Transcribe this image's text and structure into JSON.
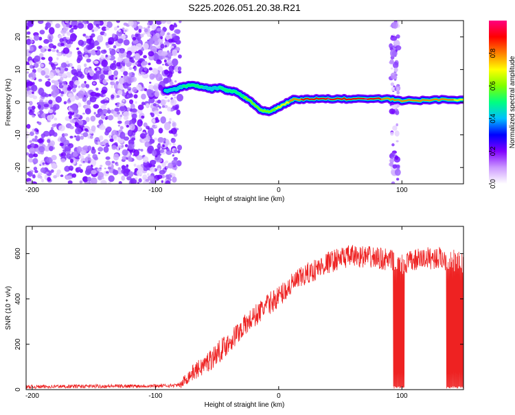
{
  "title": "S225.2026.051.20.38.R21",
  "chart_data": [
    {
      "type": "heatmap",
      "name": "spectrogram",
      "xlabel": "Height of straight line (km)",
      "ylabel": "Frequency (Hz)",
      "xlim": [
        -205,
        150
      ],
      "ylim": [
        -25,
        25
      ],
      "xticks": [
        -200,
        -100,
        0,
        100
      ],
      "yticks": [
        -20,
        -10,
        0,
        10,
        20
      ],
      "colorbar": {
        "label": "Normalized spectral amplitude",
        "range": [
          0,
          1
        ],
        "ticks": [
          "0.0",
          "0.2",
          "0.4",
          "0.6",
          "0.8"
        ],
        "colors": [
          "#ffffff",
          "#cc99ff",
          "#8000ff",
          "#0000ff",
          "#00c0ff",
          "#00ff80",
          "#80ff00",
          "#ffff00",
          "#ff8000",
          "#ff0000",
          "#ff0080"
        ]
      },
      "noise_region": {
        "x_range": [
          -205,
          -80
        ],
        "x_range_2": [
          91,
          97
        ]
      },
      "ridge": [
        {
          "x": -92,
          "y": 3.5,
          "amp": 0.35
        },
        {
          "x": -85,
          "y": 3.8,
          "amp": 0.4
        },
        {
          "x": -78,
          "y": 4.8,
          "amp": 0.45
        },
        {
          "x": -70,
          "y": 5.2,
          "amp": 0.5
        },
        {
          "x": -62,
          "y": 4.6,
          "amp": 0.45
        },
        {
          "x": -55,
          "y": 4.0,
          "amp": 0.4
        },
        {
          "x": -48,
          "y": 4.5,
          "amp": 0.45
        },
        {
          "x": -42,
          "y": 3.6,
          "amp": 0.45
        },
        {
          "x": -35,
          "y": 3.2,
          "amp": 0.5
        },
        {
          "x": -28,
          "y": 1.5,
          "amp": 0.55
        },
        {
          "x": -22,
          "y": 0,
          "amp": 0.55
        },
        {
          "x": -15,
          "y": -2.5,
          "amp": 0.6
        },
        {
          "x": -8,
          "y": -2.8,
          "amp": 0.6
        },
        {
          "x": -2,
          "y": -2,
          "amp": 0.65
        },
        {
          "x": 5,
          "y": -0.5,
          "amp": 0.7
        },
        {
          "x": 12,
          "y": 0.8,
          "amp": 0.8
        },
        {
          "x": 25,
          "y": 1.0,
          "amp": 0.9
        },
        {
          "x": 40,
          "y": 1.0,
          "amp": 0.95
        },
        {
          "x": 55,
          "y": 1.0,
          "amp": 0.9
        },
        {
          "x": 70,
          "y": 1.0,
          "amp": 0.95
        },
        {
          "x": 88,
          "y": 1.0,
          "amp": 0.8
        },
        {
          "x": 100,
          "y": 0.5,
          "amp": 0.75
        },
        {
          "x": 115,
          "y": 0.5,
          "amp": 0.8
        },
        {
          "x": 130,
          "y": 0.8,
          "amp": 0.8
        },
        {
          "x": 150,
          "y": 0.8,
          "amp": 0.7
        }
      ]
    },
    {
      "type": "line",
      "name": "snr",
      "xlabel": "Height of straight line (km)",
      "ylabel": "SNR (10 * v/v)",
      "xlim": [
        -205,
        150
      ],
      "ylim": [
        0,
        720
      ],
      "xticks": [
        -200,
        -100,
        0,
        100
      ],
      "yticks": [
        0,
        200,
        400,
        600
      ],
      "color": "#ee2222",
      "series": [
        {
          "name": "SNR",
          "x": [
            -205,
            -180,
            -150,
            -120,
            -90,
            -80,
            -76,
            -70,
            -60,
            -50,
            -40,
            -30,
            -20,
            -10,
            0,
            10,
            20,
            30,
            40,
            50,
            60,
            70,
            80,
            90,
            96,
            100,
            110,
            120,
            130,
            140,
            150
          ],
          "y": [
            12,
            14,
            15,
            16,
            17,
            20,
            50,
            80,
            120,
            170,
            220,
            280,
            330,
            380,
            420,
            470,
            510,
            540,
            570,
            590,
            600,
            595,
            590,
            580,
            570,
            560,
            580,
            590,
            590,
            580,
            570
          ],
          "dropouts": [
            [
              93,
              102
            ],
            [
              136,
              150
            ]
          ],
          "noise_amplitude": 45
        }
      ]
    }
  ]
}
